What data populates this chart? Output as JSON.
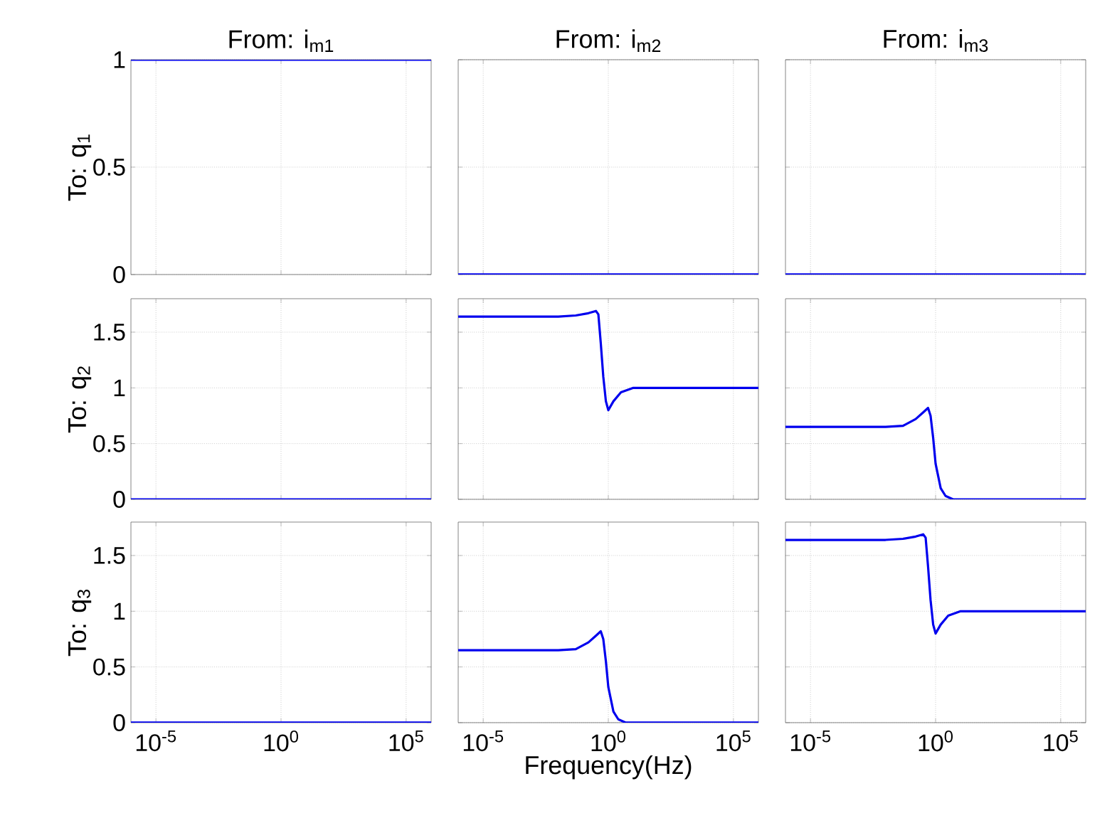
{
  "chart_data": [
    {
      "type": "line",
      "title": "From: i$_{m1}$",
      "ylabel": "To: q$_{1}$",
      "x": [
        1e-06,
        1000000.0
      ],
      "series": [
        {
          "color": "#0000ee",
          "values": [
            1,
            1
          ]
        }
      ],
      "xlim": [
        1e-06,
        1000000.0
      ],
      "ylim": [
        0,
        1
      ],
      "xticks": [
        {
          "value": 1e-05,
          "label": null
        },
        {
          "value": 1,
          "label": null
        },
        {
          "value": 100000.0,
          "label": null
        }
      ],
      "yticks": [
        0,
        0.5,
        1
      ],
      "log": "x",
      "grid": true,
      "tick_labels": "y"
    },
    {
      "type": "line",
      "title": "From: i$_{m2}$",
      "x": [
        1e-06,
        1000000.0
      ],
      "series": [
        {
          "color": "#0000ee",
          "values": [
            0,
            0
          ]
        }
      ],
      "xlim": [
        1e-06,
        1000000.0
      ],
      "ylim": [
        0,
        1
      ],
      "xticks": [
        {
          "value": 1e-05,
          "label": null
        },
        {
          "value": 1,
          "label": null
        },
        {
          "value": 100000.0,
          "label": null
        }
      ],
      "yticks": [
        0,
        0.5,
        1
      ],
      "log": "x",
      "grid": true,
      "tick_labels": false
    },
    {
      "type": "line",
      "title": "From: i$_{m3}$",
      "x": [
        1e-06,
        1000000.0
      ],
      "series": [
        {
          "color": "#0000ee",
          "values": [
            0,
            0
          ]
        }
      ],
      "xlim": [
        1e-06,
        1000000.0
      ],
      "ylim": [
        0,
        1
      ],
      "xticks": [
        {
          "value": 1e-05,
          "label": null
        },
        {
          "value": 1,
          "label": null
        },
        {
          "value": 100000.0,
          "label": null
        }
      ],
      "yticks": [
        0,
        0.5,
        1
      ],
      "log": "x",
      "grid": true,
      "tick_labels": false
    },
    {
      "type": "line",
      "ylabel": "To: q$_{2}$",
      "x": [
        1e-06,
        1000000.0
      ],
      "series": [
        {
          "color": "#0000ee",
          "values": [
            0,
            0
          ]
        }
      ],
      "xlim": [
        1e-06,
        1000000.0
      ],
      "ylim": [
        0,
        1.8
      ],
      "xticks": [
        {
          "value": 1e-05,
          "label": null
        },
        {
          "value": 1,
          "label": null
        },
        {
          "value": 100000.0,
          "label": null
        }
      ],
      "yticks": [
        0,
        0.5,
        1,
        1.5
      ],
      "log": "x",
      "grid": true,
      "tick_labels": "y"
    },
    {
      "type": "line",
      "x": [
        1e-06,
        0.01,
        0.05,
        0.16,
        0.32,
        0.4,
        0.5,
        0.63,
        0.8,
        1,
        1.6,
        3.2,
        10,
        1000000.0
      ],
      "series": [
        {
          "color": "#0000ee",
          "values": [
            1.64,
            1.64,
            1.65,
            1.67,
            1.69,
            1.66,
            1.4,
            1.1,
            0.88,
            0.8,
            0.88,
            0.96,
            1.0,
            1.0
          ]
        }
      ],
      "xlim": [
        1e-06,
        1000000.0
      ],
      "ylim": [
        0,
        1.8
      ],
      "xticks": [
        {
          "value": 1e-05,
          "label": null
        },
        {
          "value": 1,
          "label": null
        },
        {
          "value": 100000.0,
          "label": null
        }
      ],
      "yticks": [
        0,
        0.5,
        1,
        1.5
      ],
      "log": "x",
      "grid": true,
      "tick_labels": false
    },
    {
      "type": "line",
      "x": [
        1e-06,
        0.01,
        0.05,
        0.16,
        0.32,
        0.5,
        0.63,
        0.8,
        1,
        1.6,
        2.5,
        5,
        1000000.0
      ],
      "series": [
        {
          "color": "#0000ee",
          "values": [
            0.65,
            0.65,
            0.66,
            0.72,
            0.78,
            0.82,
            0.75,
            0.55,
            0.32,
            0.1,
            0.03,
            0,
            0
          ]
        }
      ],
      "xlim": [
        1e-06,
        1000000.0
      ],
      "ylim": [
        0,
        1.8
      ],
      "xticks": [
        {
          "value": 1e-05,
          "label": null
        },
        {
          "value": 1,
          "label": null
        },
        {
          "value": 100000.0,
          "label": null
        }
      ],
      "yticks": [
        0,
        0.5,
        1,
        1.5
      ],
      "log": "x",
      "grid": true,
      "tick_labels": false
    },
    {
      "type": "line",
      "ylabel": "To: q$_{3}$",
      "x": [
        1e-06,
        1000000.0
      ],
      "series": [
        {
          "color": "#0000ee",
          "values": [
            0,
            0
          ]
        }
      ],
      "xlim": [
        1e-06,
        1000000.0
      ],
      "ylim": [
        0,
        1.8
      ],
      "xticks": [
        {
          "value": 1e-05,
          "label": "10$^{-5}$"
        },
        {
          "value": 1,
          "label": "10$^{0}$"
        },
        {
          "value": 100000.0,
          "label": "10$^{5}$"
        }
      ],
      "yticks": [
        0,
        0.5,
        1,
        1.5
      ],
      "log": "x",
      "grid": true
    },
    {
      "type": "line",
      "xlabel": "Frequency(Hz)",
      "x": [
        1e-06,
        0.01,
        0.05,
        0.16,
        0.32,
        0.5,
        0.63,
        0.8,
        1,
        1.6,
        2.5,
        5,
        1000000.0
      ],
      "series": [
        {
          "color": "#0000ee",
          "values": [
            0.65,
            0.65,
            0.66,
            0.72,
            0.78,
            0.82,
            0.75,
            0.55,
            0.32,
            0.1,
            0.03,
            0,
            0
          ]
        }
      ],
      "xlim": [
        1e-06,
        1000000.0
      ],
      "ylim": [
        0,
        1.8
      ],
      "xticks": [
        {
          "value": 1e-05,
          "label": "10$^{-5}$"
        },
        {
          "value": 1,
          "label": "10$^{0}$"
        },
        {
          "value": 100000.0,
          "label": "10$^{5}$"
        }
      ],
      "yticks": [
        0,
        0.5,
        1,
        1.5
      ],
      "log": "x",
      "grid": true,
      "tick_labels": "x"
    },
    {
      "type": "line",
      "x": [
        1e-06,
        0.01,
        0.05,
        0.16,
        0.32,
        0.4,
        0.5,
        0.63,
        0.8,
        1,
        1.6,
        3.2,
        10,
        1000000.0
      ],
      "series": [
        {
          "color": "#0000ee",
          "values": [
            1.64,
            1.64,
            1.65,
            1.67,
            1.69,
            1.66,
            1.4,
            1.1,
            0.88,
            0.8,
            0.88,
            0.96,
            1.0,
            1.0
          ]
        }
      ],
      "xlim": [
        1e-06,
        1000000.0
      ],
      "ylim": [
        0,
        1.8
      ],
      "xticks": [
        {
          "value": 1e-05,
          "label": "10$^{-5}$"
        },
        {
          "value": 1,
          "label": "10$^{0}$"
        },
        {
          "value": 100000.0,
          "label": "10$^{5}$"
        }
      ],
      "yticks": [
        0,
        0.5,
        1,
        1.5
      ],
      "log": "x",
      "grid": true,
      "tick_labels": "x"
    }
  ]
}
